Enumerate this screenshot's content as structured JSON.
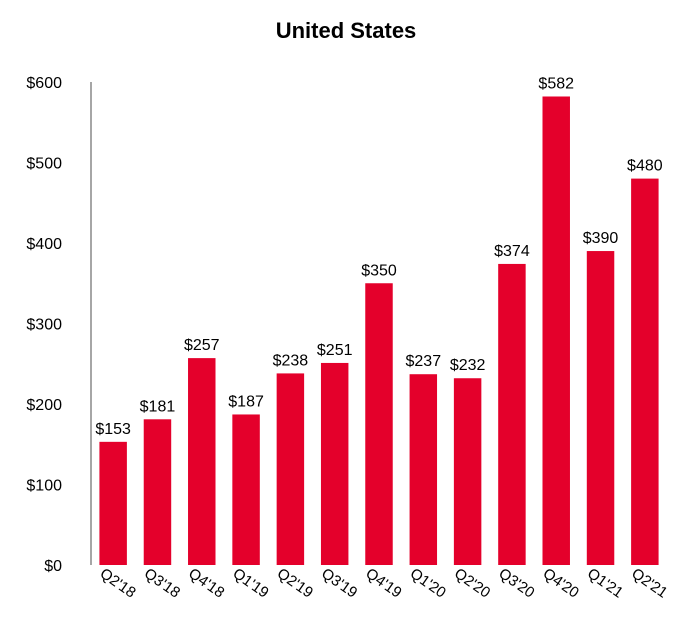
{
  "chart_data": {
    "type": "bar",
    "title": "United States",
    "categories": [
      "Q2'18",
      "Q3'18",
      "Q4'18",
      "Q1'19",
      "Q2'19",
      "Q3'19",
      "Q4'19",
      "Q1'20",
      "Q2'20",
      "Q3'20",
      "Q4'20",
      "Q1'21",
      "Q2'21"
    ],
    "values": [
      153,
      181,
      257,
      187,
      238,
      251,
      350,
      237,
      232,
      374,
      582,
      390,
      480
    ],
    "data_labels": [
      "$153",
      "$181",
      "$257",
      "$187",
      "$238",
      "$251",
      "$350",
      "$237",
      "$232",
      "$374",
      "$582",
      "$390",
      "$480"
    ],
    "y_ticks": [
      0,
      100,
      200,
      300,
      400,
      500,
      600
    ],
    "y_tick_labels": [
      "$0",
      "$100",
      "$200",
      "$300",
      "$400",
      "$500",
      "$600"
    ],
    "ylim": [
      0,
      600
    ],
    "xlabel": "",
    "ylabel": "",
    "grid": false,
    "legend": "none",
    "bar_color": "#e4002b",
    "axis_color": "#a6a6a6"
  }
}
